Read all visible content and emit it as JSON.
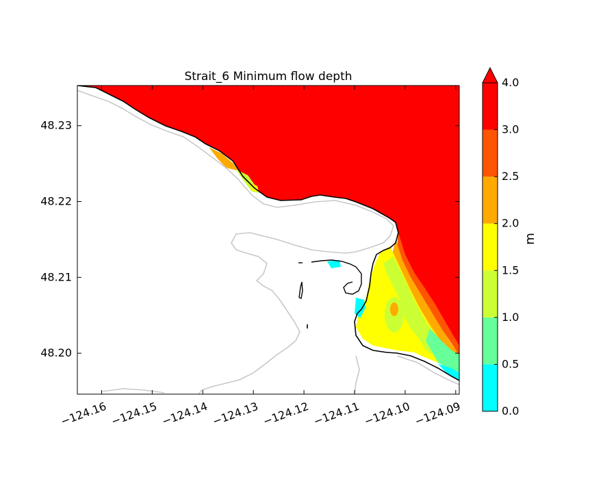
{
  "chart_data": {
    "type": "heatmap",
    "title": "Strait_6 Minimum flow depth",
    "xlabel": "",
    "ylabel": "",
    "xlim": [
      -124.1648,
      -124.0893
    ],
    "ylim": [
      48.1946,
      48.2353
    ],
    "x_ticks": [
      "−124.16",
      "−124.15",
      "−124.14",
      "−124.13",
      "−124.12",
      "−124.11",
      "−124.10",
      "−124.09"
    ],
    "x_tick_values": [
      -124.16,
      -124.15,
      -124.14,
      -124.13,
      -124.12,
      -124.11,
      -124.1,
      -124.09
    ],
    "y_ticks": [
      "48.20",
      "48.21",
      "48.22",
      "48.23"
    ],
    "y_tick_values": [
      48.2,
      48.21,
      48.22,
      48.23
    ],
    "grid": false,
    "colorbar": {
      "label": "m",
      "extend": "max",
      "levels": [
        0.0,
        0.5,
        1.0,
        1.5,
        2.0,
        2.5,
        3.0,
        4.0
      ],
      "tick_labels": [
        "0.0",
        "0.5",
        "1.0",
        "1.5",
        "2.0",
        "2.5",
        "3.0",
        "4.0"
      ],
      "colors": [
        "#00ffff",
        "#66ff99",
        "#ccff33",
        "#ffff00",
        "#ffaa00",
        "#ff5500",
        "#ff0000"
      ],
      "extend_color": "#ff0000"
    },
    "colors": {
      "coastline": "#000000",
      "contour_gray": "#c8c8c8",
      "land": "#ffffff"
    }
  }
}
